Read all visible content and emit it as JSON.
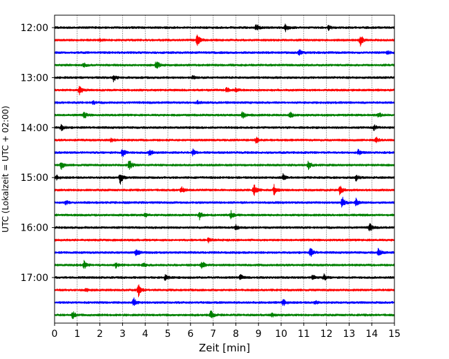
{
  "chart_data": {
    "type": "line",
    "title": "",
    "xlabel": "Zeit  [min]",
    "ylabel": "UTC (Lokalzeit = UTC + 02:00)",
    "xlim": [
      0,
      15
    ],
    "x_ticks": [
      0,
      1,
      2,
      3,
      4,
      5,
      6,
      7,
      8,
      9,
      10,
      11,
      12,
      13,
      14,
      15
    ],
    "y_tick_labels": [
      "12:00",
      "13:00",
      "14:00",
      "15:00",
      "16:00",
      "17:00"
    ],
    "grid": "vertical-dotted",
    "legend": "none",
    "colors": [
      "#000000",
      "#ff0000",
      "#0000ff",
      "#008000"
    ],
    "traces": [
      {
        "time": "12:00",
        "color": "#000000",
        "events": [
          {
            "t": 8.9,
            "a": 0.5
          },
          {
            "t": 10.2,
            "a": 0.6
          },
          {
            "t": 12.1,
            "a": 0.4
          }
        ]
      },
      {
        "time": "12:15",
        "color": "#ff0000",
        "events": [
          {
            "t": 6.3,
            "a": 1.0
          },
          {
            "t": 13.5,
            "a": 0.9
          },
          {
            "t": 2.0,
            "a": 0.15
          }
        ]
      },
      {
        "time": "12:30",
        "color": "#0000ff",
        "events": [
          {
            "t": 10.8,
            "a": 0.6
          },
          {
            "t": 14.7,
            "a": 0.3
          }
        ]
      },
      {
        "time": "12:45",
        "color": "#008000",
        "events": [
          {
            "t": 4.5,
            "a": 0.8
          },
          {
            "t": 1.3,
            "a": 0.3
          }
        ]
      },
      {
        "time": "13:00",
        "color": "#000000",
        "events": [
          {
            "t": 2.6,
            "a": 0.6
          },
          {
            "t": 6.1,
            "a": 0.3
          }
        ]
      },
      {
        "time": "13:15",
        "color": "#ff0000",
        "events": [
          {
            "t": 1.1,
            "a": 0.8
          },
          {
            "t": 7.6,
            "a": 0.4
          },
          {
            "t": 8.0,
            "a": 0.3
          }
        ]
      },
      {
        "time": "13:30",
        "color": "#0000ff",
        "events": [
          {
            "t": 1.7,
            "a": 0.3
          },
          {
            "t": 6.3,
            "a": 0.3
          }
        ]
      },
      {
        "time": "13:45",
        "color": "#008000",
        "events": [
          {
            "t": 1.3,
            "a": 0.6
          },
          {
            "t": 8.3,
            "a": 0.6
          },
          {
            "t": 10.4,
            "a": 0.5
          },
          {
            "t": 14.3,
            "a": 0.5
          }
        ]
      },
      {
        "time": "14:00",
        "color": "#000000",
        "events": [
          {
            "t": 0.3,
            "a": 0.5
          },
          {
            "t": 14.1,
            "a": 0.4
          }
        ]
      },
      {
        "time": "14:15",
        "color": "#ff0000",
        "events": [
          {
            "t": 2.5,
            "a": 0.3
          },
          {
            "t": 8.9,
            "a": 0.5
          },
          {
            "t": 14.2,
            "a": 0.4
          }
        ]
      },
      {
        "time": "14:30",
        "color": "#0000ff",
        "events": [
          {
            "t": 3.0,
            "a": 0.8
          },
          {
            "t": 4.2,
            "a": 0.6
          },
          {
            "t": 6.1,
            "a": 0.5
          },
          {
            "t": 13.4,
            "a": 0.5
          }
        ]
      },
      {
        "time": "14:45",
        "color": "#008000",
        "events": [
          {
            "t": 0.3,
            "a": 0.6
          },
          {
            "t": 3.3,
            "a": 0.9
          },
          {
            "t": 11.2,
            "a": 0.8
          }
        ]
      },
      {
        "time": "15:00",
        "color": "#000000",
        "events": [
          {
            "t": 2.9,
            "a": 1.0
          },
          {
            "t": 10.1,
            "a": 0.6
          },
          {
            "t": 13.3,
            "a": 0.6
          },
          {
            "t": 0.1,
            "a": 0.3
          }
        ]
      },
      {
        "time": "15:15",
        "color": "#ff0000",
        "events": [
          {
            "t": 5.6,
            "a": 0.5
          },
          {
            "t": 8.8,
            "a": 1.0
          },
          {
            "t": 9.7,
            "a": 0.9
          },
          {
            "t": 12.6,
            "a": 0.8
          }
        ]
      },
      {
        "time": "15:30",
        "color": "#0000ff",
        "events": [
          {
            "t": 0.5,
            "a": 0.3
          },
          {
            "t": 12.7,
            "a": 1.0
          },
          {
            "t": 13.3,
            "a": 0.6
          }
        ]
      },
      {
        "time": "15:45",
        "color": "#008000",
        "events": [
          {
            "t": 6.4,
            "a": 0.7
          },
          {
            "t": 7.8,
            "a": 0.7
          },
          {
            "t": 4.0,
            "a": 0.3
          }
        ]
      },
      {
        "time": "16:00",
        "color": "#000000",
        "events": [
          {
            "t": 8.0,
            "a": 0.4
          },
          {
            "t": 13.9,
            "a": 0.7
          }
        ]
      },
      {
        "time": "16:15",
        "color": "#ff0000",
        "events": [
          {
            "t": 6.8,
            "a": 0.4
          }
        ]
      },
      {
        "time": "16:30",
        "color": "#0000ff",
        "events": [
          {
            "t": 3.6,
            "a": 0.6
          },
          {
            "t": 11.3,
            "a": 0.8
          },
          {
            "t": 14.3,
            "a": 0.7
          }
        ]
      },
      {
        "time": "16:45",
        "color": "#008000",
        "events": [
          {
            "t": 1.3,
            "a": 0.6
          },
          {
            "t": 2.7,
            "a": 0.4
          },
          {
            "t": 6.5,
            "a": 0.6
          },
          {
            "t": 3.9,
            "a": 0.4
          }
        ]
      },
      {
        "time": "17:00",
        "color": "#000000",
        "events": [
          {
            "t": 4.9,
            "a": 0.5
          },
          {
            "t": 8.2,
            "a": 0.5
          },
          {
            "t": 11.4,
            "a": 0.5
          },
          {
            "t": 11.9,
            "a": 0.5
          }
        ]
      },
      {
        "time": "17:15",
        "color": "#ff0000",
        "events": [
          {
            "t": 3.7,
            "a": 1.0
          },
          {
            "t": 1.4,
            "a": 0.3
          }
        ]
      },
      {
        "time": "17:30",
        "color": "#0000ff",
        "events": [
          {
            "t": 3.5,
            "a": 0.8
          },
          {
            "t": 10.1,
            "a": 0.5
          },
          {
            "t": 11.5,
            "a": 0.3
          }
        ]
      },
      {
        "time": "17:45",
        "color": "#008000",
        "events": [
          {
            "t": 0.8,
            "a": 0.6
          },
          {
            "t": 6.9,
            "a": 0.7
          },
          {
            "t": 9.6,
            "a": 0.3
          }
        ]
      }
    ]
  }
}
